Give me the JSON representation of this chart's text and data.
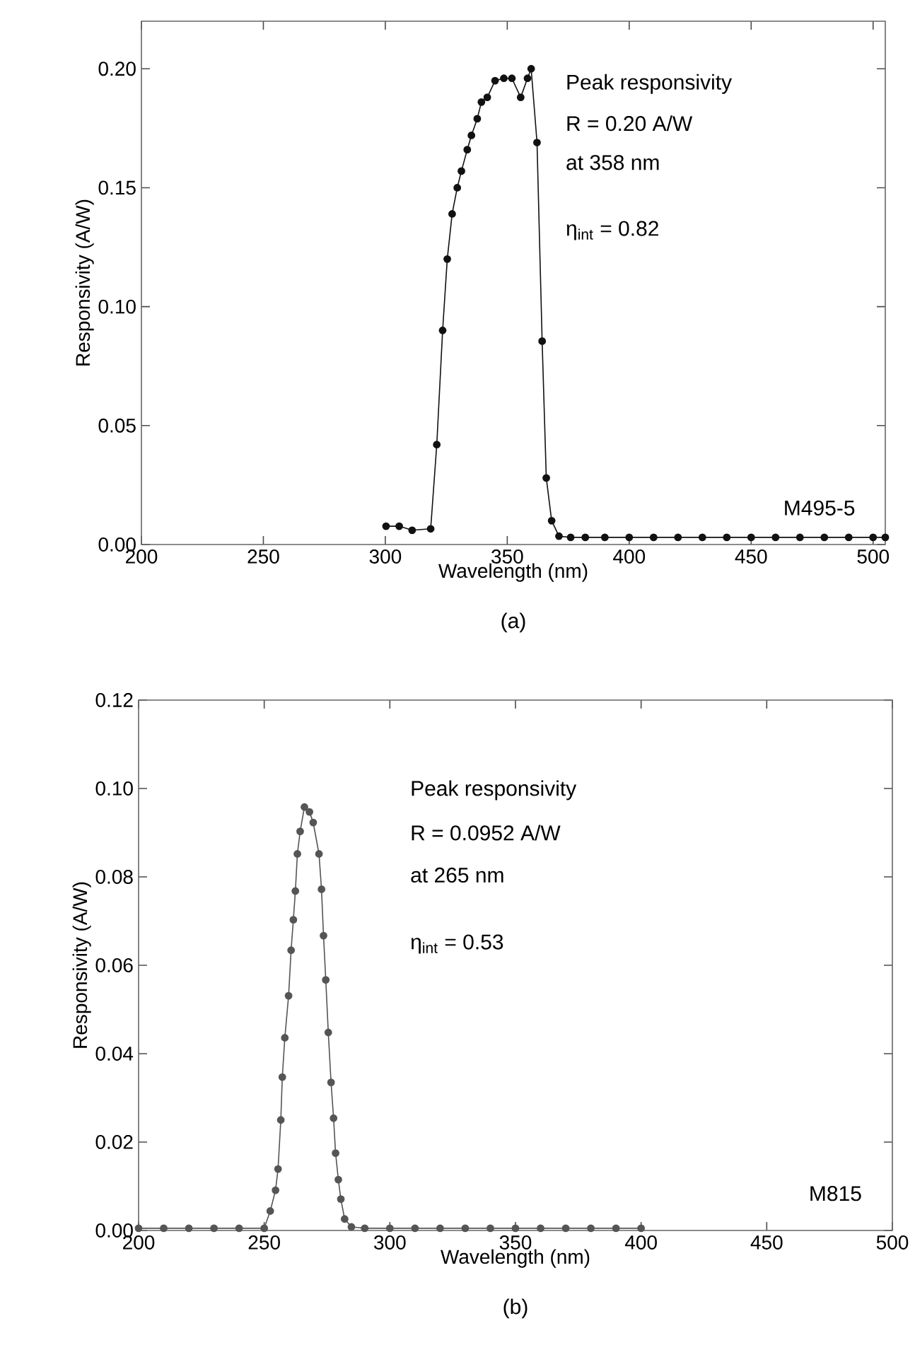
{
  "chart_data": [
    {
      "type": "line",
      "xlabel": "Wavelength (nm)",
      "ylabel": "Responsivity (A/W)",
      "marker": "circle",
      "line_style": "solid",
      "xlim": [
        200,
        505
      ],
      "ylim": [
        0,
        0.22
      ],
      "xticks": [
        200,
        250,
        300,
        350,
        400,
        450,
        500
      ],
      "yticks": [
        {
          "value": 0,
          "label": "0.00"
        },
        {
          "value": 0.05,
          "label": "0.05"
        },
        {
          "value": 0.1,
          "label": "0.10"
        },
        {
          "value": 0.15,
          "label": "0.15"
        },
        {
          "value": 0.2,
          "label": "0.20"
        }
      ],
      "annotations": [
        "Peak responsivity",
        "R = 0.20 A/W",
        "at 358 nm",
        "η$_{int}$ = 0.82",
        "M495-5",
        "(a)"
      ],
      "series": [
        {
          "color": "#111111",
          "x": [
            300.3,
            305.7,
            311,
            318.6,
            321.1,
            323.5,
            325.4,
            327.4,
            329.5,
            331.2,
            333.6,
            335.3,
            337.7,
            339.4,
            341.8,
            345,
            348.6,
            351.9,
            355.5,
            358.3,
            359.8,
            362.2,
            364.3,
            366,
            368.2,
            371.2,
            376,
            382,
            390,
            400,
            410,
            420,
            430,
            440,
            450,
            460,
            470,
            480,
            490,
            500,
            505
          ],
          "values": [
            0.0077,
            0.0077,
            0.006,
            0.0066,
            0.042,
            0.09,
            0.12,
            0.139,
            0.15,
            0.157,
            0.166,
            0.172,
            0.179,
            0.186,
            0.188,
            0.195,
            0.196,
            0.196,
            0.188,
            0.196,
            0.2,
            0.169,
            0.0855,
            0.028,
            0.01,
            0.0035,
            0.003,
            0.003,
            0.003,
            0.003,
            0.003,
            0.003,
            0.003,
            0.003,
            0.003,
            0.003,
            0.003,
            0.003,
            0.003,
            0.003,
            0.003
          ]
        }
      ]
    },
    {
      "type": "line",
      "xlabel": "Wavelength (nm)",
      "ylabel": "Responsivity (A/W)",
      "marker": "circle",
      "line_style": "solid",
      "xlim": [
        200,
        500
      ],
      "ylim": [
        0,
        0.12
      ],
      "xticks": [
        200,
        250,
        300,
        350,
        400,
        450,
        500
      ],
      "yticks": [
        {
          "value": 0,
          "label": "0.00"
        },
        {
          "value": 0.02,
          "label": "0.02"
        },
        {
          "value": 0.04,
          "label": "0.04"
        },
        {
          "value": 0.06,
          "label": "0.06"
        },
        {
          "value": 0.08,
          "label": "0.08"
        },
        {
          "value": 0.1,
          "label": "0.10"
        },
        {
          "value": 0.12,
          "label": "0.12"
        }
      ],
      "annotations": [
        "Peak responsivity",
        "R = 0.0952 A/W",
        "at 265 nm",
        "η$_{int}$ = 0.53",
        "M815",
        "(b)"
      ],
      "series": [
        {
          "color": "#555555",
          "x": [
            200,
            210,
            220,
            230,
            240,
            250,
            252.4,
            254.5,
            255.5,
            256.6,
            257.2,
            258.2,
            259.7,
            260.7,
            261.6,
            262.4,
            263.2,
            264.3,
            266,
            268,
            269.5,
            271.8,
            272.8,
            273.6,
            274.5,
            275.5,
            276.6,
            277.6,
            278.4,
            279.5,
            280.5,
            282,
            284.7,
            290,
            300,
            310,
            320,
            330,
            340,
            350,
            360,
            370,
            380,
            390,
            400
          ],
          "values": [
            0.0005,
            0.0005,
            0.0005,
            0.0005,
            0.0005,
            0.0005,
            0.0044,
            0.0091,
            0.0139,
            0.025,
            0.0347,
            0.0436,
            0.0531,
            0.0634,
            0.0703,
            0.0768,
            0.0852,
            0.0903,
            0.0958,
            0.0947,
            0.0923,
            0.0852,
            0.0772,
            0.0667,
            0.0567,
            0.0448,
            0.0335,
            0.0254,
            0.0175,
            0.0115,
            0.0071,
            0.0026,
            0.0008,
            0.0005,
            0.0005,
            0.0005,
            0.0005,
            0.0005,
            0.0005,
            0.0005,
            0.0005,
            0.0005,
            0.0005,
            0.0005,
            0.0005
          ]
        }
      ]
    }
  ]
}
